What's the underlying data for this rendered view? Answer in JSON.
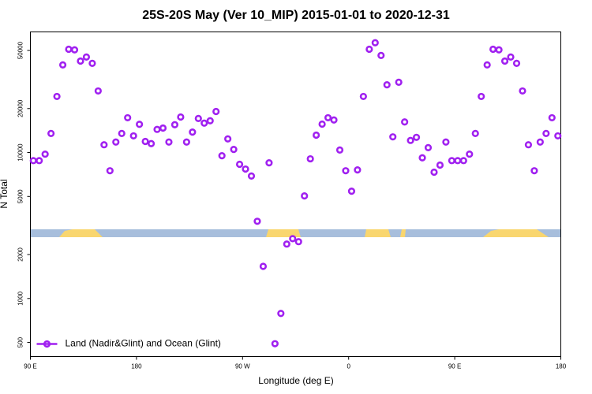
{
  "chart_data": {
    "type": "scatter",
    "title": "25S-20S May (Ver 10_MIP)   2015-01-01 to 2020-12-31",
    "xlabel": "Longitude (deg E)",
    "ylabel": "N Total",
    "xlim": [
      90,
      540
    ],
    "xticks": [
      {
        "value": 90,
        "label": "90 E"
      },
      180,
      {
        "value": 270,
        "label": "90 W"
      },
      {
        "value": 360,
        "label": "0"
      },
      {
        "value": 450,
        "label": "90 E"
      },
      {
        "value": 540,
        "label": "180"
      }
    ],
    "ylim": [
      400,
      67000
    ],
    "ylog": true,
    "yticks": [
      500,
      1000,
      2000,
      5000,
      10000,
      20000,
      50000
    ],
    "legend": "bottom-left",
    "series": [
      {
        "name": "Land (Nadir&Glint) and Ocean (Glint)",
        "color": "#a020f0",
        "x": [
          92.5,
          97.5,
          102.5,
          107.5,
          112.5,
          117.5,
          122.5,
          127.5,
          132.5,
          137.5,
          142.5,
          147.5,
          152.5,
          157.5,
          162.5,
          167.5,
          172.5,
          177.5,
          182.5,
          187.5,
          192.5,
          197.5,
          202.5,
          207.5,
          212.5,
          217.5,
          222.5,
          227.5,
          232.5,
          237.5,
          242.5,
          247.5,
          252.5,
          257.5,
          262.5,
          267.5,
          272.5,
          277.5,
          282.5,
          287.5,
          292.5,
          297.5,
          302.5,
          307.5,
          312.5,
          317.5,
          322.5,
          327.5,
          332.5,
          337.5,
          342.5,
          347.5,
          352.5,
          357.5,
          362.5,
          367.5,
          372.5,
          377.5,
          382.5,
          387.5,
          392.5,
          397.5,
          402.5,
          407.5,
          412.5,
          417.5,
          422.5,
          427.5,
          432.5,
          437.5,
          442.5,
          447.5,
          452.5,
          457.5,
          462.5,
          467.5,
          472.5,
          477.5,
          482.5,
          487.5,
          492.5,
          497.5,
          502.5,
          507.5,
          512.5,
          517.5,
          522.5,
          527.5,
          532.5,
          537.5
        ],
        "values": [
          8800,
          8800,
          9750,
          13500,
          24200,
          39800,
          51000,
          50500,
          42300,
          45100,
          40800,
          26400,
          11300,
          7500,
          11800,
          13500,
          17300,
          13000,
          15600,
          11900,
          11500,
          14400,
          14700,
          11800,
          15500,
          17500,
          11800,
          13800,
          17100,
          15900,
          16500,
          19100,
          9500,
          12400,
          10500,
          8300,
          7700,
          6900,
          3380,
          1660,
          8500,
          490,
          790,
          2360,
          2570,
          2450,
          5040,
          9050,
          13150,
          15650,
          17300,
          16700,
          10400,
          7500,
          5430,
          7600,
          24200,
          51000,
          56500,
          46200,
          29100,
          12800,
          30300,
          16200,
          12100,
          12700,
          9200,
          10800,
          7330,
          8200,
          11800,
          8800,
          8800,
          8800,
          9750,
          13500,
          24200,
          39800,
          51000,
          50500,
          42300,
          45100,
          40800,
          26400,
          11300,
          7500,
          11800,
          13500,
          17300,
          13000
        ]
      }
    ]
  }
}
